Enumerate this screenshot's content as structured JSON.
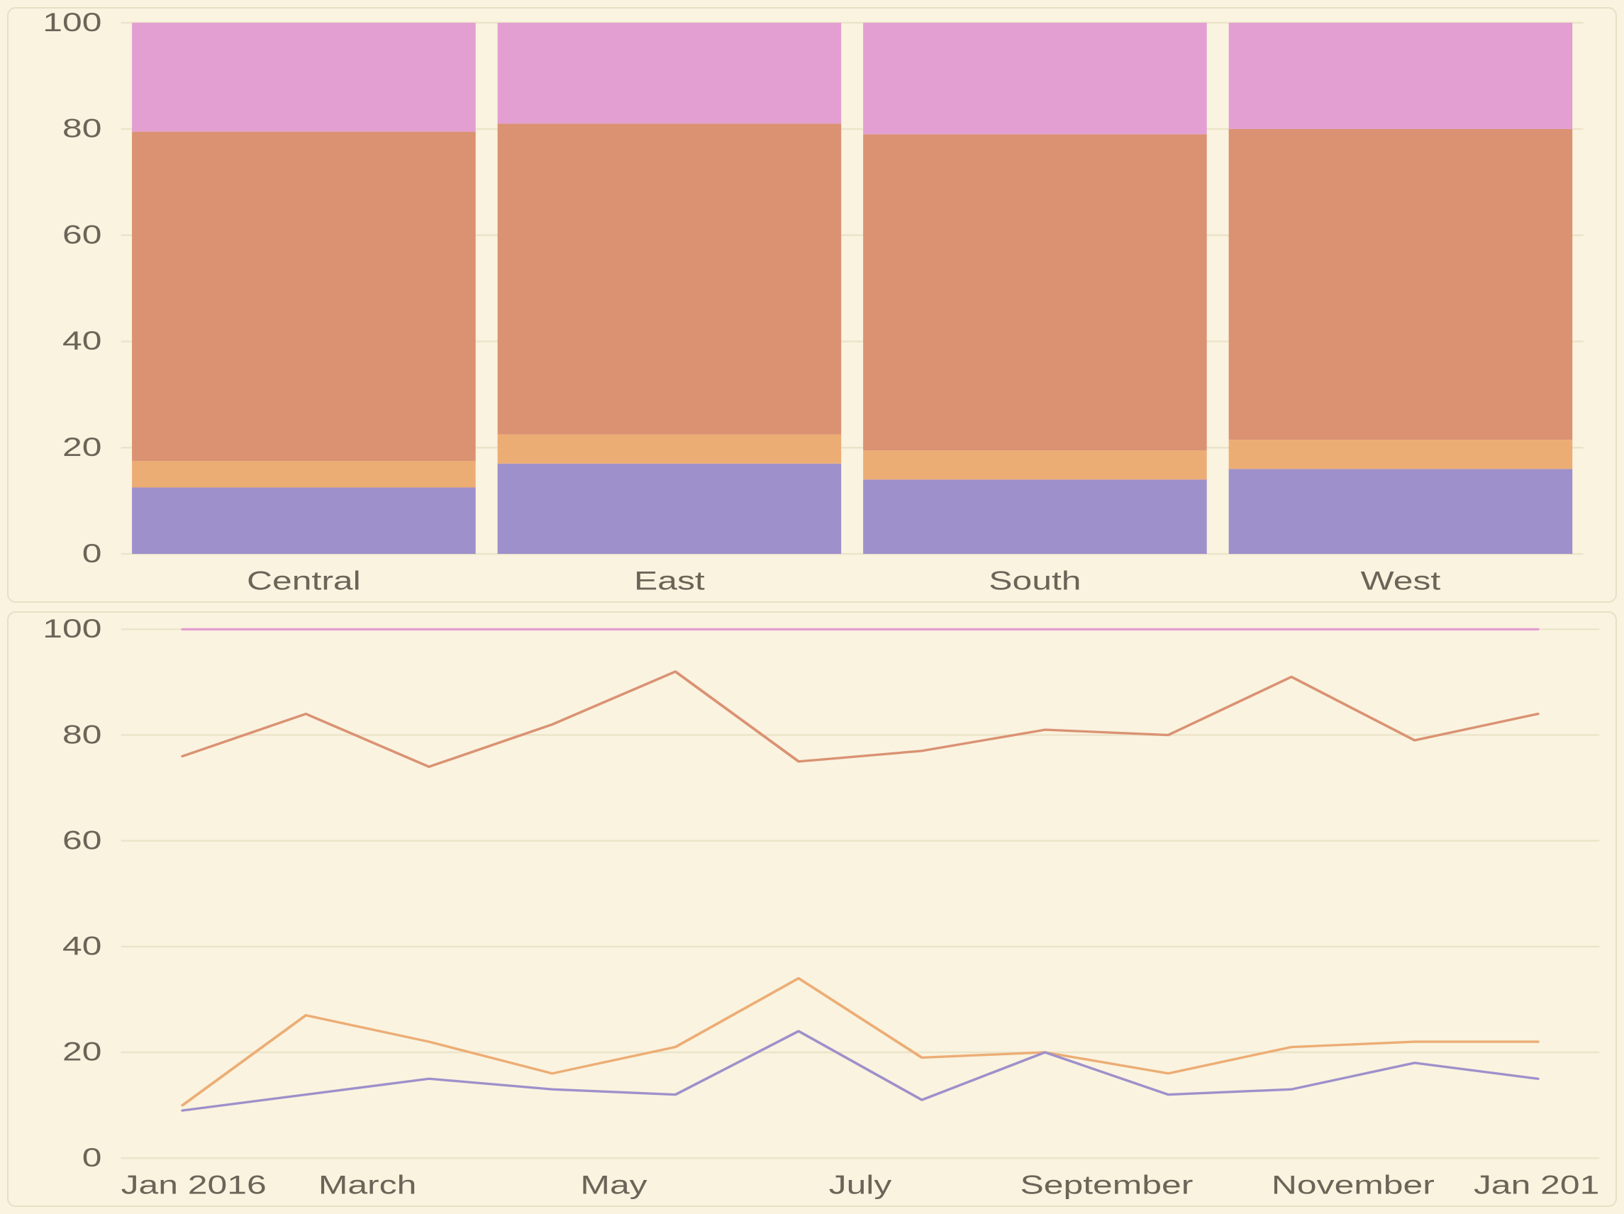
{
  "colors": {
    "background": "#faf3df",
    "panel_border": "#e8dfc4",
    "grid": "#ece4ca",
    "axis_label": "#6b6458",
    "series_purple": "#9e90cb",
    "series_orange_light": "#ecad75",
    "series_orange_dark": "#da9273",
    "series_pink": "#e39fd1"
  },
  "bar_chart": {
    "type": "stacked-bar-100",
    "ylim": [
      0,
      100
    ],
    "ytick_step": 20,
    "label_fontsize": 22,
    "bar_gap_ratio": 0.06,
    "categories": [
      "Central",
      "East",
      "South",
      "West"
    ],
    "stack_order": [
      "series_purple",
      "series_orange_light",
      "series_orange_dark",
      "series_pink"
    ],
    "stacks": {
      "Central": {
        "series_purple": 12.5,
        "series_orange_light": 5.0,
        "series_orange_dark": 62.0,
        "series_pink": 20.5
      },
      "East": {
        "series_purple": 17.0,
        "series_orange_light": 5.5,
        "series_orange_dark": 58.5,
        "series_pink": 19.0
      },
      "South": {
        "series_purple": 14.0,
        "series_orange_light": 5.5,
        "series_orange_dark": 59.5,
        "series_pink": 21.0
      },
      "West": {
        "series_purple": 16.0,
        "series_orange_light": 5.5,
        "series_orange_dark": 58.5,
        "series_pink": 20.0
      }
    }
  },
  "line_chart": {
    "type": "line",
    "ylim": [
      0,
      100
    ],
    "ytick_step": 20,
    "line_width": 2,
    "label_fontsize": 22,
    "x_labels": [
      "Jan 2016",
      "March",
      "May",
      "July",
      "September",
      "November",
      "Jan 201"
    ],
    "x_label_positions": [
      0,
      2,
      4,
      6,
      8,
      10,
      12
    ],
    "x_domain": [
      0,
      12
    ],
    "x_data_range": [
      0.5,
      11.5
    ],
    "series": {
      "pink": {
        "color_key": "series_pink",
        "values": [
          100,
          100,
          100,
          100,
          100,
          100,
          100,
          100,
          100,
          100,
          100,
          100
        ]
      },
      "dark_orange": {
        "color_key": "series_orange_dark",
        "values": [
          76,
          84,
          74,
          82,
          92,
          75,
          77,
          81,
          80,
          91,
          79,
          84
        ]
      },
      "light_orange": {
        "color_key": "series_orange_light",
        "values": [
          10,
          27,
          22,
          16,
          21,
          34,
          19,
          20,
          16,
          21,
          22,
          22
        ]
      },
      "purple": {
        "color_key": "series_purple",
        "values": [
          9,
          12,
          15,
          13,
          12,
          24,
          11,
          20,
          12,
          13,
          18,
          15
        ]
      }
    }
  }
}
